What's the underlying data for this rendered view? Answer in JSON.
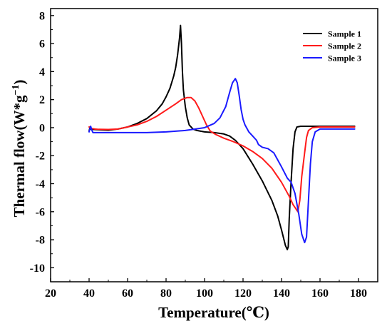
{
  "chart_data": {
    "type": "line",
    "title": "",
    "xlabel": "Temperature(℃)",
    "ylabel": "Thermal flow(W*g",
    "ylabel_sup": "−1",
    "ylabel_end": ")",
    "xlim": [
      20,
      190
    ],
    "ylim": [
      -11,
      8.5
    ],
    "xticks": [
      20,
      40,
      60,
      80,
      100,
      120,
      140,
      160,
      180
    ],
    "yticks": [
      -10,
      -8,
      -6,
      -4,
      -2,
      0,
      2,
      4,
      6,
      8
    ],
    "grid": false,
    "legend_position": "top-right",
    "series": [
      {
        "name": "Sample 1",
        "color": "#000000",
        "points": [
          [
            40,
            -0.25
          ],
          [
            40.5,
            0.05
          ],
          [
            41,
            -0.12
          ],
          [
            45,
            -0.15
          ],
          [
            50,
            -0.18
          ],
          [
            55,
            -0.1
          ],
          [
            60,
            0.05
          ],
          [
            65,
            0.3
          ],
          [
            70,
            0.65
          ],
          [
            75,
            1.2
          ],
          [
            78,
            1.7
          ],
          [
            80,
            2.2
          ],
          [
            82,
            2.8
          ],
          [
            84,
            3.7
          ],
          [
            85,
            4.3
          ],
          [
            86,
            5.2
          ],
          [
            87,
            6.4
          ],
          [
            87.5,
            7.3
          ],
          [
            88,
            6.0
          ],
          [
            88.5,
            4.0
          ],
          [
            89,
            2.7
          ],
          [
            90,
            1.5
          ],
          [
            91,
            0.7
          ],
          [
            92,
            0.2
          ],
          [
            94,
            -0.1
          ],
          [
            96,
            -0.2
          ],
          [
            100,
            -0.3
          ],
          [
            105,
            -0.35
          ],
          [
            110,
            -0.45
          ],
          [
            113,
            -0.6
          ],
          [
            116,
            -0.9
          ],
          [
            120,
            -1.5
          ],
          [
            125,
            -2.6
          ],
          [
            130,
            -3.8
          ],
          [
            135,
            -5.2
          ],
          [
            138,
            -6.3
          ],
          [
            140,
            -7.3
          ],
          [
            142,
            -8.4
          ],
          [
            143,
            -8.7
          ],
          [
            143.5,
            -8.5
          ],
          [
            144,
            -6.5
          ],
          [
            145,
            -3.8
          ],
          [
            146,
            -1.5
          ],
          [
            147,
            -0.3
          ],
          [
            148,
            0.05
          ],
          [
            150,
            0.1
          ],
          [
            160,
            0.1
          ],
          [
            170,
            0.1
          ],
          [
            178,
            0.1
          ]
        ]
      },
      {
        "name": "Sample 2",
        "color": "#ff1a1a",
        "points": [
          [
            40,
            0.05
          ],
          [
            41,
            -0.05
          ],
          [
            43,
            -0.1
          ],
          [
            45,
            -0.12
          ],
          [
            50,
            -0.13
          ],
          [
            55,
            -0.1
          ],
          [
            60,
            0.05
          ],
          [
            65,
            0.2
          ],
          [
            70,
            0.45
          ],
          [
            75,
            0.8
          ],
          [
            80,
            1.25
          ],
          [
            85,
            1.7
          ],
          [
            88,
            2.0
          ],
          [
            91,
            2.15
          ],
          [
            93,
            2.15
          ],
          [
            95,
            1.9
          ],
          [
            97,
            1.4
          ],
          [
            99,
            0.8
          ],
          [
            101,
            0.2
          ],
          [
            103,
            -0.25
          ],
          [
            106,
            -0.5
          ],
          [
            110,
            -0.75
          ],
          [
            115,
            -1.0
          ],
          [
            120,
            -1.3
          ],
          [
            125,
            -1.7
          ],
          [
            130,
            -2.2
          ],
          [
            135,
            -2.9
          ],
          [
            140,
            -3.9
          ],
          [
            144,
            -4.9
          ],
          [
            146,
            -5.5
          ],
          [
            147.5,
            -5.8
          ],
          [
            148.5,
            -6.0
          ],
          [
            149.5,
            -5.2
          ],
          [
            150.5,
            -3.5
          ],
          [
            152,
            -1.8
          ],
          [
            153,
            -0.7
          ],
          [
            154,
            -0.2
          ],
          [
            156,
            0.0
          ],
          [
            160,
            0.05
          ],
          [
            170,
            0.05
          ],
          [
            178,
            0.05
          ]
        ]
      },
      {
        "name": "Sample 3",
        "color": "#1a1aff",
        "points": [
          [
            40,
            -0.3
          ],
          [
            40.8,
            0.1
          ],
          [
            41.5,
            -0.2
          ],
          [
            42,
            -0.35
          ],
          [
            45,
            -0.35
          ],
          [
            50,
            -0.35
          ],
          [
            60,
            -0.35
          ],
          [
            70,
            -0.35
          ],
          [
            80,
            -0.3
          ],
          [
            90,
            -0.2
          ],
          [
            100,
            0.0
          ],
          [
            105,
            0.3
          ],
          [
            108,
            0.7
          ],
          [
            111,
            1.5
          ],
          [
            113,
            2.5
          ],
          [
            114.5,
            3.2
          ],
          [
            116,
            3.5
          ],
          [
            117,
            3.2
          ],
          [
            118,
            2.3
          ],
          [
            119,
            1.3
          ],
          [
            120,
            0.6
          ],
          [
            121,
            0.2
          ],
          [
            123,
            -0.3
          ],
          [
            125,
            -0.6
          ],
          [
            127,
            -0.9
          ],
          [
            128,
            -1.2
          ],
          [
            130,
            -1.4
          ],
          [
            133,
            -1.5
          ],
          [
            136,
            -1.8
          ],
          [
            138,
            -2.3
          ],
          [
            140,
            -2.8
          ],
          [
            143,
            -3.6
          ],
          [
            145,
            -3.9
          ],
          [
            147,
            -4.7
          ],
          [
            149,
            -6.2
          ],
          [
            150.5,
            -7.6
          ],
          [
            152,
            -8.2
          ],
          [
            153,
            -7.8
          ],
          [
            154,
            -5.2
          ],
          [
            155,
            -2.6
          ],
          [
            156,
            -1.0
          ],
          [
            157.5,
            -0.3
          ],
          [
            160,
            -0.1
          ],
          [
            170,
            -0.1
          ],
          [
            178,
            -0.1
          ]
        ]
      }
    ]
  }
}
